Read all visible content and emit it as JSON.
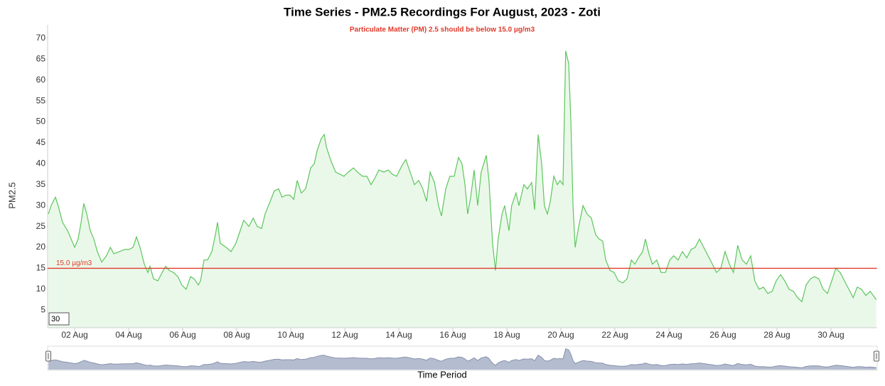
{
  "chart_data": {
    "type": "line",
    "title": "Time Series - PM2.5 Recordings For August, 2023 - Zoti",
    "subtitle": "Particulate Matter (PM) 2.5 should be below 15.0 µg/m3",
    "ylabel": "PM2.5",
    "xlabel": "Time Period",
    "zoom_box": "30",
    "color": "#5cc65c",
    "fill": "#eaf8ea",
    "threshold": {
      "value": 15,
      "label": "15.0 µg/m3",
      "color": "#e03a2a"
    },
    "xlim": [
      1,
      31.7
    ],
    "ylim": [
      0.8,
      73.2
    ],
    "xticks": [
      {
        "value": 2,
        "label": "02 Aug"
      },
      {
        "value": 4,
        "label": "04 Aug"
      },
      {
        "value": 6,
        "label": "06 Aug"
      },
      {
        "value": 8,
        "label": "08 Aug"
      },
      {
        "value": 10,
        "label": "10 Aug"
      },
      {
        "value": 12,
        "label": "12 Aug"
      },
      {
        "value": 14,
        "label": "14 Aug"
      },
      {
        "value": 16,
        "label": "16 Aug"
      },
      {
        "value": 18,
        "label": "18 Aug"
      },
      {
        "value": 20,
        "label": "20 Aug"
      },
      {
        "value": 22,
        "label": "22 Aug"
      },
      {
        "value": 24,
        "label": "24 Aug"
      },
      {
        "value": 26,
        "label": "26 Aug"
      },
      {
        "value": 28,
        "label": "28 Aug"
      },
      {
        "value": 30,
        "label": "30 Aug"
      }
    ],
    "yticks": [
      5,
      10,
      15,
      20,
      25,
      30,
      35,
      40,
      45,
      50,
      55,
      60,
      65,
      70
    ],
    "x": [
      1.03,
      1.13,
      1.29,
      1.39,
      1.55,
      1.74,
      1.87,
      2.0,
      2.13,
      2.24,
      2.34,
      2.45,
      2.58,
      2.71,
      2.84,
      3.0,
      3.18,
      3.32,
      3.45,
      3.66,
      3.84,
      4.0,
      4.16,
      4.29,
      4.42,
      4.58,
      4.71,
      4.79,
      4.92,
      5.08,
      5.24,
      5.37,
      5.5,
      5.66,
      5.82,
      5.97,
      6.13,
      6.29,
      6.42,
      6.58,
      6.66,
      6.79,
      6.92,
      7.08,
      7.21,
      7.29,
      7.39,
      7.61,
      7.79,
      7.97,
      8.13,
      8.26,
      8.45,
      8.61,
      8.76,
      8.92,
      9.05,
      9.24,
      9.39,
      9.55,
      9.68,
      9.82,
      9.97,
      10.11,
      10.24,
      10.39,
      10.55,
      10.74,
      10.87,
      10.97,
      11.13,
      11.24,
      11.32,
      11.47,
      11.66,
      11.82,
      11.97,
      12.13,
      12.32,
      12.47,
      12.66,
      12.82,
      12.97,
      13.11,
      13.26,
      13.45,
      13.61,
      13.76,
      13.92,
      14.11,
      14.26,
      14.42,
      14.58,
      14.74,
      14.89,
      15.03,
      15.16,
      15.32,
      15.47,
      15.58,
      15.74,
      15.89,
      16.05,
      16.21,
      16.34,
      16.45,
      16.55,
      16.66,
      16.79,
      16.92,
      17.05,
      17.24,
      17.34,
      17.47,
      17.58,
      17.68,
      17.82,
      17.92,
      18.08,
      18.18,
      18.34,
      18.45,
      18.63,
      18.76,
      18.92,
      19.03,
      19.16,
      19.29,
      19.39,
      19.5,
      19.61,
      19.74,
      19.87,
      19.97,
      20.08,
      20.18,
      20.29,
      20.37,
      20.45,
      20.53,
      20.66,
      20.82,
      20.97,
      21.13,
      21.29,
      21.42,
      21.55,
      21.66,
      21.82,
      21.97,
      22.13,
      22.29,
      22.45,
      22.61,
      22.74,
      22.87,
      23.03,
      23.13,
      23.26,
      23.39,
      23.55,
      23.71,
      23.87,
      24.03,
      24.18,
      24.34,
      24.5,
      24.66,
      24.82,
      24.97,
      25.13,
      25.29,
      25.45,
      25.61,
      25.76,
      25.92,
      26.08,
      26.24,
      26.39,
      26.55,
      26.71,
      26.87,
      27.03,
      27.18,
      27.34,
      27.5,
      27.66,
      27.82,
      27.97,
      28.13,
      28.29,
      28.45,
      28.61,
      28.76,
      28.92,
      29.08,
      29.24,
      29.39,
      29.55,
      29.71,
      29.87,
      30.03,
      30.18,
      30.34,
      30.5,
      30.66,
      30.82,
      30.97,
      31.13,
      31.29,
      31.45,
      31.68
    ],
    "values": [
      28,
      30,
      32,
      30,
      26,
      24,
      22,
      20,
      22,
      26,
      30.5,
      28,
      24,
      22,
      19,
      16.5,
      18,
      20,
      18.5,
      19,
      19.5,
      19.5,
      20,
      22.5,
      20,
      16,
      14,
      15.5,
      12.5,
      12,
      14,
      15.5,
      14.5,
      14,
      13,
      11,
      10,
      13,
      12.5,
      11,
      12,
      17,
      17,
      19,
      23,
      26,
      21,
      20,
      19,
      21,
      24,
      26.5,
      25,
      27,
      25,
      24.5,
      28,
      31,
      33.5,
      34,
      32,
      32.5,
      32.5,
      31.5,
      36,
      33,
      34,
      39,
      40,
      43,
      46,
      47,
      44,
      41,
      38,
      37.5,
      37,
      38,
      39,
      38,
      37,
      37,
      35,
      36.5,
      38.5,
      38,
      38.5,
      37.5,
      37,
      39.5,
      41,
      38,
      35,
      36,
      34,
      31,
      38,
      35.5,
      30,
      27.5,
      34,
      37,
      37,
      41.5,
      40,
      35,
      28,
      32,
      38.5,
      30,
      38,
      42,
      36,
      21,
      14.5,
      22,
      28,
      30,
      24,
      30,
      33,
      30,
      35,
      34,
      35.5,
      29,
      47,
      40,
      30,
      28,
      31,
      37,
      35,
      36,
      35,
      67,
      64,
      50,
      30,
      20,
      25,
      30,
      28,
      27,
      23,
      22,
      21.5,
      17,
      14.5,
      14,
      12,
      11.5,
      12.5,
      17,
      16,
      17.5,
      19,
      22,
      18.5,
      16,
      17,
      14,
      14,
      17,
      18,
      17,
      19,
      17.5,
      19.5,
      20,
      22,
      20,
      18,
      16,
      14,
      15,
      19,
      16,
      14,
      20.5,
      17,
      16,
      18,
      12,
      10,
      10.5,
      9,
      9.5,
      12,
      13.5,
      12,
      10,
      9.5,
      8,
      7,
      11,
      12.5,
      13,
      12.5,
      10,
      9,
      12,
      15,
      14,
      12,
      10,
      8,
      10.5,
      10,
      8.5,
      9.5,
      7.5
    ]
  }
}
